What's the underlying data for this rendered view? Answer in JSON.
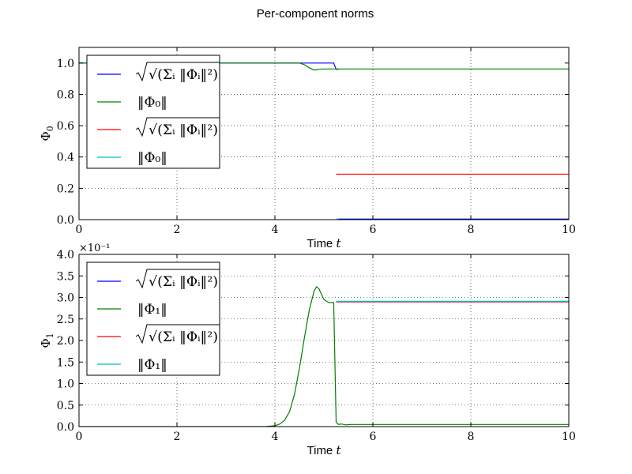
{
  "figure": {
    "suptitle": "Per-component norms"
  },
  "chart_data": [
    {
      "type": "line",
      "xlabel": "Time",
      "xlabel_var": "t",
      "ylabel": "Φ",
      "ylabel_sub": "0",
      "xlim": [
        0,
        10
      ],
      "ylim": [
        0,
        1.1
      ],
      "xticks": [
        0,
        2,
        4,
        6,
        8,
        10
      ],
      "xtick_labels": [
        "0",
        "2",
        "4",
        "6",
        "8",
        "10"
      ],
      "yticks": [
        0,
        0.2,
        0.4,
        0.6,
        0.8,
        1.0
      ],
      "ytick_labels": [
        "0.0",
        "0.2",
        "0.4",
        "0.6",
        "0.8",
        "1.0"
      ],
      "multiplier": "",
      "grid": true,
      "legend_placement": "upper-left",
      "series": [
        {
          "name": "√(Σᵢ ‖Φᵢ‖²)",
          "name_kind": "sqrt",
          "color": "#0000ff",
          "x": [
            0,
            5.2,
            5.25,
            5.3
          ],
          "y": [
            1.0,
            1.0,
            0.96,
            0.96
          ]
        },
        {
          "name": "‖Φ₀‖",
          "name_kind": "norm",
          "sub": "0",
          "color": "#008000",
          "x": [
            0,
            4.5,
            4.6,
            4.7,
            4.8,
            4.9,
            5.0,
            5.1,
            5.2,
            5.3,
            10
          ],
          "y": [
            1.0,
            1.0,
            0.99,
            0.97,
            0.955,
            0.96,
            0.962,
            0.962,
            0.962,
            0.962,
            0.962
          ]
        },
        {
          "name": "√(Σᵢ ‖Φᵢ‖²)",
          "name_kind": "sqrt",
          "color": "#ff0000",
          "x": [
            5.25,
            10
          ],
          "y": [
            0.29,
            0.29
          ]
        },
        {
          "name": "‖Φ₀‖",
          "name_kind": "norm",
          "sub": "0",
          "color": "#00bfbf",
          "x": [
            5.25,
            10
          ],
          "y": [
            0.003,
            0.003
          ]
        }
      ],
      "extra_segments": [
        {
          "color": "#0000ff",
          "x": [
            5.3,
            10
          ],
          "y": [
            0.003,
            0.003
          ]
        }
      ]
    },
    {
      "type": "line",
      "xlabel": "Time",
      "xlabel_var": "t",
      "ylabel": "Φ",
      "ylabel_sub": "1",
      "xlim": [
        0,
        10
      ],
      "ylim": [
        0,
        4.0
      ],
      "xticks": [
        0,
        2,
        4,
        6,
        8,
        10
      ],
      "xtick_labels": [
        "0",
        "2",
        "4",
        "6",
        "8",
        "10"
      ],
      "yticks": [
        0,
        0.5,
        1.0,
        1.5,
        2.0,
        2.5,
        3.0,
        3.5,
        4.0
      ],
      "ytick_labels": [
        "0.0",
        "0.5",
        "1.0",
        "1.5",
        "2.0",
        "2.5",
        "3.0",
        "3.5",
        "4.0"
      ],
      "multiplier": "×10⁻¹",
      "grid": true,
      "legend_placement": "upper-left",
      "series": [
        {
          "name": "√(Σᵢ ‖Φᵢ‖²)",
          "name_kind": "sqrt",
          "color": "#0000ff",
          "x": [
            5.25,
            10
          ],
          "y": [
            2.9,
            2.9
          ]
        },
        {
          "name": "‖Φ₁‖",
          "name_kind": "norm",
          "sub": "1",
          "color": "#008000",
          "x": [
            0,
            3.8,
            4.0,
            4.1,
            4.2,
            4.3,
            4.4,
            4.5,
            4.6,
            4.7,
            4.8,
            4.85,
            4.9,
            5.0,
            5.1,
            5.2,
            5.25,
            5.3,
            5.35,
            5.45,
            5.55,
            10
          ],
          "y": [
            0.0,
            0.0,
            0.02,
            0.06,
            0.15,
            0.35,
            0.75,
            1.35,
            2.05,
            2.7,
            3.15,
            3.25,
            3.2,
            2.95,
            2.88,
            2.88,
            0.1,
            0.05,
            0.06,
            0.04,
            0.05,
            0.05
          ]
        },
        {
          "name": "√(Σᵢ ‖Φᵢ‖²)",
          "name_kind": "sqrt",
          "color": "#ff0000",
          "x": [
            5.25,
            10
          ],
          "y": [
            2.9,
            2.9
          ]
        },
        {
          "name": "‖Φ₁‖",
          "name_kind": "norm",
          "sub": "1",
          "color": "#00bfbf",
          "x": [
            5.25,
            10
          ],
          "y": [
            2.91,
            2.91
          ]
        }
      ],
      "extra_segments": []
    }
  ]
}
